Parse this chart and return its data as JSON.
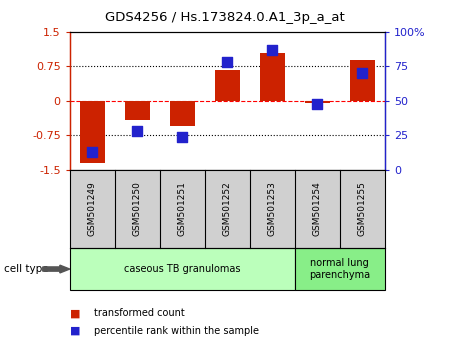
{
  "title": "GDS4256 / Hs.173824.0.A1_3p_a_at",
  "samples": [
    "GSM501249",
    "GSM501250",
    "GSM501251",
    "GSM501252",
    "GSM501253",
    "GSM501254",
    "GSM501255"
  ],
  "transformed_count": [
    -1.35,
    -0.42,
    -0.55,
    0.67,
    1.05,
    -0.05,
    0.88
  ],
  "percentile_rank": [
    13,
    28,
    24,
    78,
    87,
    48,
    70
  ],
  "ylim_left": [
    -1.5,
    1.5
  ],
  "ylim_right": [
    0,
    100
  ],
  "yticks_left": [
    -1.5,
    -0.75,
    0,
    0.75,
    1.5
  ],
  "yticks_right": [
    0,
    25,
    50,
    75,
    100
  ],
  "ytick_labels_left": [
    "-1.5",
    "-0.75",
    "0",
    "0.75",
    "1.5"
  ],
  "ytick_labels_right": [
    "0",
    "25",
    "50",
    "75",
    "100%"
  ],
  "bar_color": "#cc2200",
  "dot_color": "#2222cc",
  "plot_bg": "#ffffff",
  "cell_groups": [
    {
      "label": "caseous TB granulomas",
      "indices": [
        0,
        1,
        2,
        3,
        4
      ],
      "color": "#bbffbb"
    },
    {
      "label": "normal lung\nparenchyma",
      "indices": [
        5,
        6
      ],
      "color": "#88ee88"
    }
  ],
  "legend_red": "transformed count",
  "legend_blue": "percentile rank within the sample",
  "cell_type_label": "cell type",
  "bar_width": 0.55,
  "dot_size": 50
}
